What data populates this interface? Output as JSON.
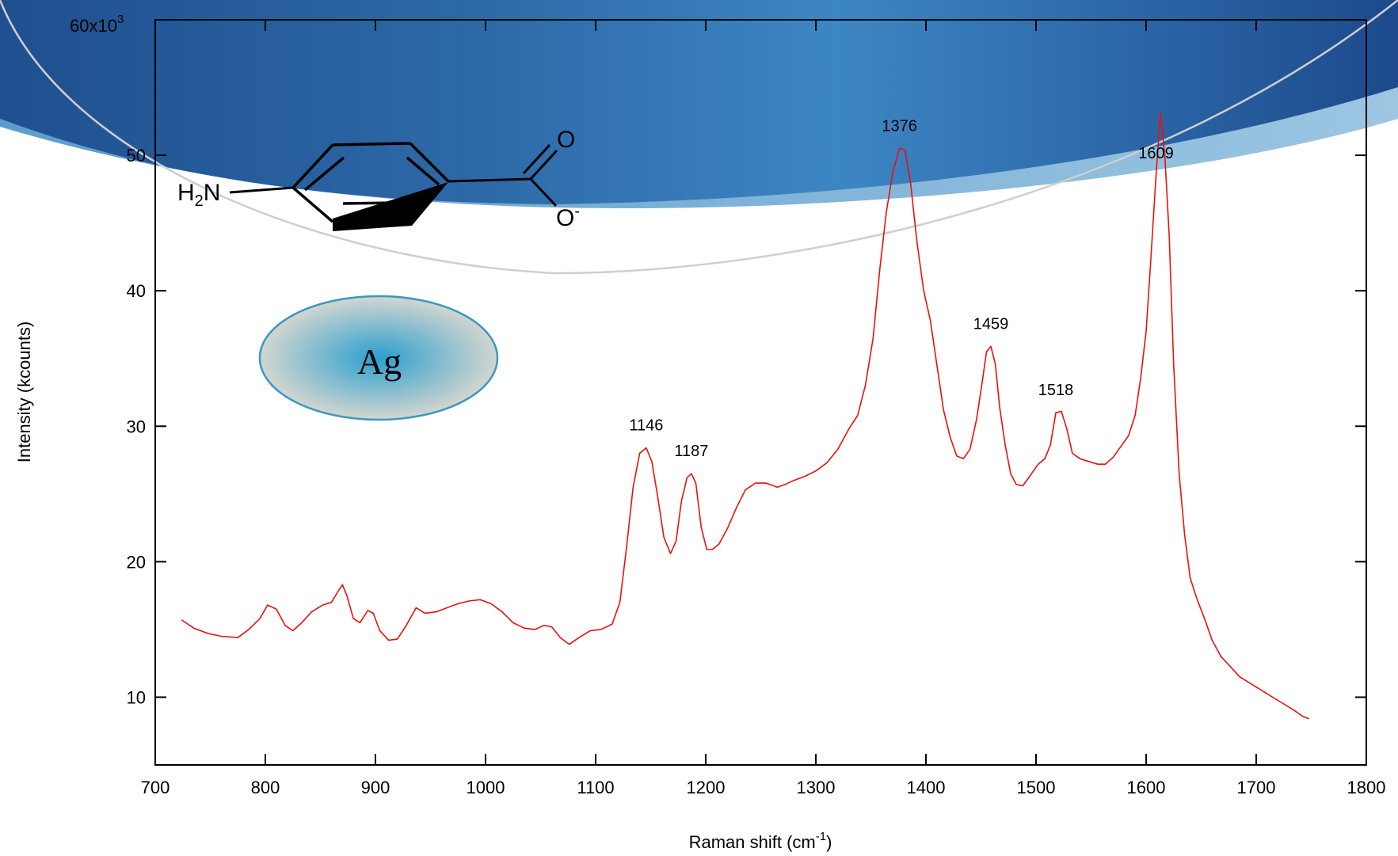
{
  "chart_data": {
    "type": "line",
    "title": "",
    "xlabel": "Raman shift (cm",
    "xlabel_superscript": "-1",
    "xlabel_suffix": ")",
    "ylabel": "Intensity (kcounts)",
    "xlim": [
      700,
      1800
    ],
    "ylim": [
      5,
      60
    ],
    "x_ticks": [
      "700",
      "800",
      "900",
      "1000",
      "1100",
      "1200",
      "1300",
      "1400",
      "1500",
      "1600",
      "1700",
      "1800"
    ],
    "y_ticks": [
      "10",
      "20",
      "30",
      "40",
      "50"
    ],
    "y_top_label": "60x10",
    "y_top_label_superscript": "3",
    "grid": false,
    "series": [
      {
        "color": "#e8120c",
        "x": [
          724,
          735,
          748,
          760,
          775,
          785,
          795,
          802,
          810,
          818,
          825,
          833,
          842,
          852,
          860,
          866,
          870,
          874,
          880,
          886,
          893,
          898,
          904,
          912,
          920,
          928,
          937,
          945,
          955,
          965,
          975,
          985,
          995,
          1005,
          1015,
          1025,
          1035,
          1045,
          1053,
          1060,
          1068,
          1076,
          1085,
          1095,
          1105,
          1115,
          1122,
          1128,
          1134,
          1140,
          1146,
          1151,
          1156,
          1162,
          1168,
          1173,
          1178,
          1183,
          1187,
          1191,
          1196,
          1201,
          1206,
          1212,
          1220,
          1228,
          1236,
          1245,
          1255,
          1265,
          1272,
          1280,
          1290,
          1300,
          1310,
          1320,
          1330,
          1338,
          1345,
          1352,
          1358,
          1364,
          1370,
          1376,
          1381,
          1386,
          1392,
          1398,
          1404,
          1410,
          1416,
          1422,
          1428,
          1434,
          1440,
          1446,
          1451,
          1455,
          1459,
          1463,
          1467,
          1472,
          1477,
          1482,
          1488,
          1495,
          1502,
          1508,
          1513,
          1518,
          1523,
          1528,
          1533,
          1540,
          1548,
          1556,
          1563,
          1570,
          1577,
          1584,
          1590,
          1595,
          1600,
          1604,
          1609,
          1613,
          1617,
          1621,
          1625,
          1630,
          1635,
          1640,
          1646,
          1653,
          1660,
          1668,
          1676,
          1685,
          1695,
          1705,
          1715,
          1725,
          1735,
          1742,
          1748
        ],
        "y": [
          15.7,
          15.1,
          14.7,
          14.5,
          14.4,
          15.0,
          15.8,
          16.8,
          16.5,
          15.3,
          14.9,
          15.5,
          16.3,
          16.8,
          17.0,
          17.8,
          18.3,
          17.5,
          15.8,
          15.5,
          16.4,
          16.2,
          14.9,
          14.2,
          14.3,
          15.3,
          16.6,
          16.2,
          16.3,
          16.6,
          16.9,
          17.1,
          17.2,
          16.9,
          16.3,
          15.5,
          15.1,
          15.0,
          15.3,
          15.2,
          14.4,
          13.9,
          14.4,
          14.9,
          15.0,
          15.4,
          17.0,
          21.0,
          25.5,
          28.0,
          28.4,
          27.4,
          25.0,
          21.8,
          20.6,
          21.5,
          24.5,
          26.2,
          26.5,
          25.8,
          22.5,
          20.9,
          20.9,
          21.3,
          22.5,
          24.0,
          25.3,
          25.8,
          25.8,
          25.5,
          25.7,
          26.0,
          26.3,
          26.7,
          27.3,
          28.3,
          29.8,
          30.8,
          33.0,
          36.5,
          41.5,
          45.8,
          48.8,
          50.5,
          50.4,
          48.0,
          43.5,
          40.0,
          37.8,
          34.5,
          31.2,
          29.2,
          27.8,
          27.6,
          28.3,
          30.5,
          33.2,
          35.5,
          35.9,
          34.6,
          31.4,
          28.6,
          26.5,
          25.7,
          25.6,
          26.4,
          27.2,
          27.6,
          28.6,
          31.0,
          31.1,
          29.8,
          28.0,
          27.6,
          27.4,
          27.2,
          27.2,
          27.7,
          28.5,
          29.3,
          30.8,
          33.5,
          37.0,
          42.0,
          48.5,
          53.1,
          50.0,
          44.0,
          34.5,
          26.5,
          22.0,
          18.8,
          17.3,
          15.8,
          14.2,
          13.0,
          12.3,
          11.5,
          11.0,
          10.5,
          10.0,
          9.5,
          9.0,
          8.6,
          8.4
        ]
      }
    ],
    "annotations": [
      "1146",
      "1187",
      "1376",
      "1459",
      "1518",
      "1609"
    ]
  },
  "inset": {
    "amine_label": "H",
    "amine_subscript": "2",
    "amine_suffix": "N",
    "carbonyl_o": "O",
    "carboxylate_o": "O",
    "carboxylate_charge": "-",
    "substrate_label": "Ag"
  },
  "colors": {
    "series": "#e8120c",
    "banner_dark": "#1f4f8f",
    "banner_light": "#3d86c4",
    "ag_center": "#2a9fcf",
    "ag_edge": "#d3d6cf",
    "ag_stroke": "#3b97c4"
  }
}
